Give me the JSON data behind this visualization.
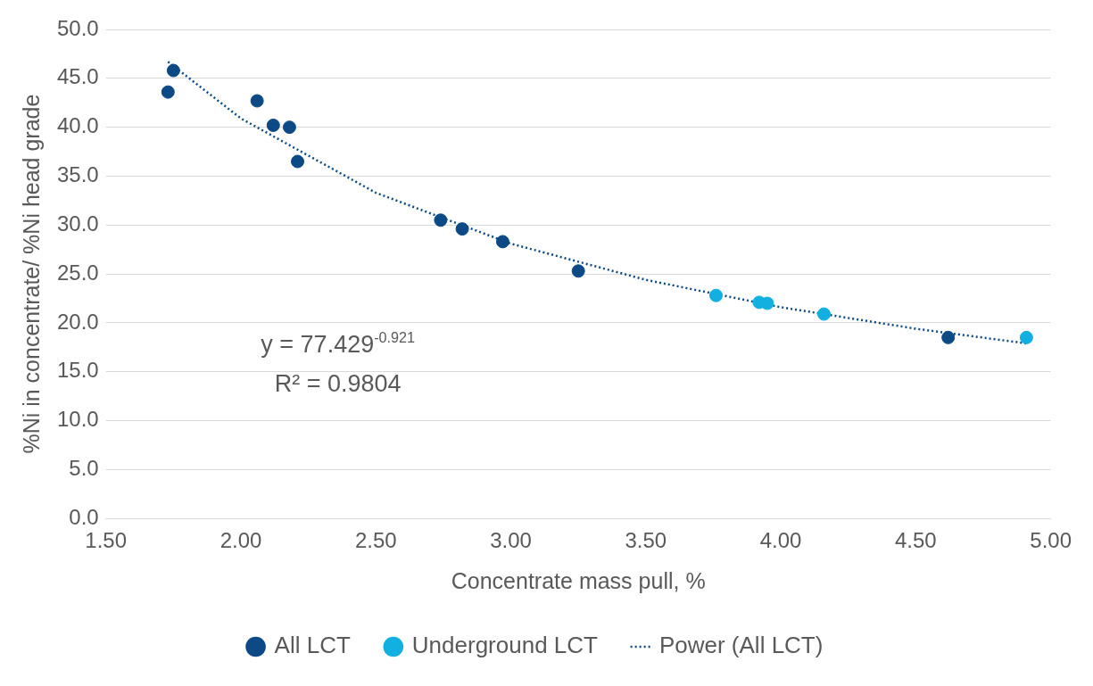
{
  "chart_data": {
    "type": "scatter",
    "xlabel": "Concentrate mass pull, %",
    "ylabel": "%Ni in concentrate/ %Ni head grade",
    "xlim": [
      1.5,
      5
    ],
    "ylim": [
      0,
      50
    ],
    "xticks": [
      {
        "value": 1.5,
        "label": "1.50"
      },
      {
        "value": 2,
        "label": "2.00"
      },
      {
        "value": 2.5,
        "label": "2.50"
      },
      {
        "value": 3,
        "label": "3.00"
      },
      {
        "value": 3.5,
        "label": "3.50"
      },
      {
        "value": 4,
        "label": "4.00"
      },
      {
        "value": 4.5,
        "label": "4.50"
      },
      {
        "value": 5,
        "label": "5.00"
      }
    ],
    "yticks": [
      {
        "value": 0,
        "label": "0.0"
      },
      {
        "value": 5,
        "label": "5.0"
      },
      {
        "value": 10,
        "label": "10.0"
      },
      {
        "value": 15,
        "label": "15.0"
      },
      {
        "value": 20,
        "label": "20.0"
      },
      {
        "value": 25,
        "label": "25.0"
      },
      {
        "value": 30,
        "label": "30.0"
      },
      {
        "value": 35,
        "label": "35.0"
      },
      {
        "value": 40,
        "label": "40.0"
      },
      {
        "value": 45,
        "label": "45.0"
      },
      {
        "value": 50,
        "label": "50.0"
      }
    ],
    "grid": "y",
    "legend": "bottom",
    "marker": "circle",
    "series": [
      {
        "name": "All LCT",
        "color": "#0d4a85",
        "x": [
          1.73,
          1.75,
          2.06,
          2.12,
          2.18,
          2.21,
          2.74,
          2.82,
          2.97,
          3.25,
          4.62
        ],
        "values": [
          43.6,
          45.8,
          42.7,
          40.2,
          40.0,
          36.5,
          30.5,
          29.6,
          28.3,
          25.3,
          18.5
        ]
      },
      {
        "name": "Underground LCT",
        "color": "#12b0e0",
        "x": [
          3.76,
          3.92,
          3.95,
          4.16,
          4.91
        ],
        "values": [
          22.8,
          22.1,
          22.0,
          20.9,
          18.5
        ]
      },
      {
        "name": "Power (All LCT)",
        "type": "line",
        "color": "#0d4a85",
        "line_style": "dotted",
        "marker": "none",
        "x": [
          1.73,
          2.0,
          2.5,
          3.0,
          3.5,
          4.0,
          4.5,
          4.91
        ],
        "values": [
          46.7,
          40.9,
          33.3,
          28.1,
          24.4,
          21.6,
          19.4,
          17.9
        ]
      }
    ],
    "annotations": [
      {
        "text": "y = 77.429$^{-0.921}$"
      },
      {
        "text": "R² = 0.9804"
      }
    ]
  }
}
